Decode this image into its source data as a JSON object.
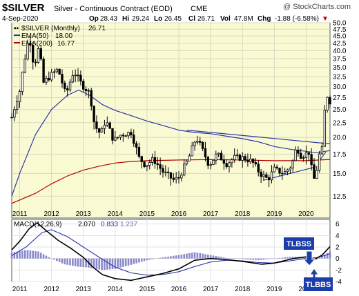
{
  "header": {
    "symbol": "$SILVER",
    "description": "Silver - Continuous Contract (EOD)",
    "exchange": "CME",
    "watermark": "@ StockCharts.com",
    "date": "4-Sep-2020",
    "op_label": "Op",
    "op": "28.43",
    "hi_label": "Hi",
    "hi": "29.24",
    "lo_label": "Lo",
    "lo": "26.45",
    "cl_label": "Cl",
    "cl": "26.71",
    "vol_label": "Vol",
    "vol": "47.8M",
    "chg_label": "Chg",
    "chg": "-1.88 (-6.58%)",
    "chg_arrow": "▼"
  },
  "colors": {
    "price_bg": "#fafad2",
    "candle": "#000000",
    "ema50": "#2b36a8",
    "ema200": "#b30000",
    "trendline": "#2b36a8",
    "macd_line": "#000000",
    "signal_line": "#2b36a8",
    "histogram": "#8888cc",
    "annotation_box": "#1c3ea8"
  },
  "annotations": {
    "tlbss": "TLBSS",
    "tlbbs": "TLBBS"
  },
  "chart_data": [
    {
      "type": "candlestick",
      "title": "$SILVER Silver - Continuous Contract (EOD)",
      "legend": [
        {
          "name": "$SILVER (Monthly)",
          "value": "26.71"
        },
        {
          "name": "EMA(50)",
          "value": "18.00"
        },
        {
          "name": "EMA(200)",
          "value": "16.77"
        }
      ],
      "y_axis": {
        "scale": "log",
        "ylim": [
          10.5,
          50
        ],
        "ticks": [
          12.5,
          15.0,
          17.5,
          20.0,
          22.5,
          25.0,
          27.5,
          30.0,
          32.5,
          35.0,
          37.5,
          40.0,
          42.5,
          45.0,
          47.5,
          50.0
        ],
        "tick_labels": [
          "12.5",
          "15.0",
          "17.5",
          "20.0",
          "22.5",
          "25.0",
          "27.5",
          "30.0",
          "32.5",
          "35.0",
          "37.5",
          "40.0",
          "42.5",
          "45.0",
          "47.5",
          "50.0"
        ]
      },
      "x_axis": {
        "range": [
          2010.75,
          2020.75
        ],
        "ticks": [
          2011,
          2012,
          2013,
          2014,
          2015,
          2016,
          2017,
          2018,
          2019,
          2020
        ],
        "tick_labels": [
          "2011",
          "2012",
          "2013",
          "2014",
          "2015",
          "2016",
          "2017",
          "2018",
          "2019",
          "2020"
        ]
      },
      "grid": true,
      "series": [
        {
          "name": "$SILVER (Monthly)",
          "type": "candlestick",
          "anchors": [
            [
              2010.75,
              23.5
            ],
            [
              2011.0,
              29.0
            ],
            [
              2011.3,
              45.0
            ],
            [
              2011.45,
              35.0
            ],
            [
              2011.6,
              41.0
            ],
            [
              2011.75,
              31.0
            ],
            [
              2012.0,
              33.0
            ],
            [
              2012.2,
              34.5
            ],
            [
              2012.45,
              28.0
            ],
            [
              2012.7,
              34.0
            ],
            [
              2012.95,
              30.5
            ],
            [
              2013.2,
              28.5
            ],
            [
              2013.35,
              22.0
            ],
            [
              2013.55,
              20.5
            ],
            [
              2013.7,
              23.0
            ],
            [
              2013.95,
              19.5
            ],
            [
              2014.2,
              20.5
            ],
            [
              2014.5,
              20.8
            ],
            [
              2014.75,
              17.0
            ],
            [
              2014.95,
              16.0
            ],
            [
              2015.2,
              16.8
            ],
            [
              2015.5,
              15.2
            ],
            [
              2015.85,
              14.2
            ],
            [
              2016.0,
              14.5
            ],
            [
              2016.3,
              16.8
            ],
            [
              2016.55,
              20.0
            ],
            [
              2016.75,
              18.0
            ],
            [
              2016.95,
              16.0
            ],
            [
              2017.2,
              17.5
            ],
            [
              2017.5,
              16.2
            ],
            [
              2017.75,
              17.0
            ],
            [
              2018.0,
              17.0
            ],
            [
              2018.3,
              16.5
            ],
            [
              2018.55,
              15.0
            ],
            [
              2018.8,
              14.3
            ],
            [
              2019.0,
              15.5
            ],
            [
              2019.3,
              15.0
            ],
            [
              2019.55,
              16.0
            ],
            [
              2019.7,
              18.5
            ],
            [
              2019.85,
              17.2
            ],
            [
              2020.1,
              17.8
            ],
            [
              2020.22,
              14.0
            ],
            [
              2020.32,
              15.2
            ],
            [
              2020.42,
              17.5
            ],
            [
              2020.5,
              18.2
            ],
            [
              2020.58,
              24.5
            ],
            [
              2020.66,
              28.0
            ],
            [
              2020.75,
              26.7
            ]
          ]
        },
        {
          "name": "EMA(50)",
          "points": [
            [
              2010.75,
              12.5
            ],
            [
              2011.0,
              15.0
            ],
            [
              2011.5,
              20.5
            ],
            [
              2012.0,
              25.0
            ],
            [
              2012.5,
              28.0
            ],
            [
              2012.85,
              29.2
            ],
            [
              2013.2,
              28.0
            ],
            [
              2013.6,
              26.0
            ],
            [
              2014.0,
              24.8
            ],
            [
              2014.5,
              23.8
            ],
            [
              2015.0,
              22.8
            ],
            [
              2015.5,
              22.0
            ],
            [
              2016.0,
              21.2
            ],
            [
              2016.5,
              20.8
            ],
            [
              2017.0,
              20.6
            ],
            [
              2017.5,
              20.2
            ],
            [
              2018.0,
              19.8
            ],
            [
              2018.5,
              19.3
            ],
            [
              2019.0,
              18.6
            ],
            [
              2019.5,
              18.2
            ],
            [
              2020.0,
              17.9
            ],
            [
              2020.3,
              17.7
            ],
            [
              2020.75,
              18.0
            ]
          ]
        },
        {
          "name": "EMA(200)",
          "points": [
            [
              2010.75,
              11.8
            ],
            [
              2011.5,
              12.8
            ],
            [
              2012.0,
              13.8
            ],
            [
              2012.5,
              14.7
            ],
            [
              2013.0,
              15.4
            ],
            [
              2013.5,
              15.9
            ],
            [
              2014.0,
              16.3
            ],
            [
              2014.5,
              16.5
            ],
            [
              2015.0,
              16.6
            ],
            [
              2016.0,
              16.7
            ],
            [
              2017.0,
              16.75
            ],
            [
              2018.0,
              16.7
            ],
            [
              2019.0,
              16.6
            ],
            [
              2020.0,
              16.6
            ],
            [
              2020.75,
              16.77
            ]
          ]
        },
        {
          "name": "Resistance trendline",
          "points": [
            [
              2016.25,
              21.2
            ],
            [
              2020.75,
              19.0
            ]
          ]
        },
        {
          "name": "Support trendline",
          "points": [
            [
              2018.65,
              14.2
            ],
            [
              2020.3,
              15.8
            ]
          ]
        },
        {
          "name": "Breakout line",
          "points": [
            [
              2020.45,
              16.8
            ],
            [
              2020.62,
              17.8
            ]
          ]
        }
      ]
    },
    {
      "type": "line",
      "title": "MACD(12,26,9) 2.070, 0.833, 1.237",
      "legend": [
        {
          "name": "MACD(12,26,9)",
          "value": "2.070"
        },
        {
          "name": "Signal",
          "value": "0.833"
        },
        {
          "name": "Histogram",
          "value": "1.237"
        }
      ],
      "ylim": [
        -4,
        6.8
      ],
      "y_ticks": [
        -4,
        -2,
        0,
        2,
        4,
        6
      ],
      "y_tick_labels": [
        "-4",
        "-2",
        "0",
        "2",
        "4",
        "6"
      ],
      "x_axis": {
        "range": [
          2010.75,
          2020.75
        ],
        "ticks": [
          2011,
          2012,
          2013,
          2014,
          2015,
          2016,
          2017,
          2018,
          2019,
          2020
        ],
        "tick_labels": [
          "2011",
          "2012",
          "2013",
          "2014",
          "2015",
          "2016",
          "2017",
          "2018",
          "2019",
          "2020"
        ]
      },
      "grid": true,
      "series": [
        {
          "name": "MACD(12,26,9)",
          "points": [
            [
              2010.75,
              1.5
            ],
            [
              2011.0,
              3.0
            ],
            [
              2011.3,
              5.2
            ],
            [
              2011.55,
              6.2
            ],
            [
              2011.8,
              5.0
            ],
            [
              2012.2,
              3.2
            ],
            [
              2012.6,
              1.8
            ],
            [
              2013.0,
              0.2
            ],
            [
              2013.3,
              -1.5
            ],
            [
              2013.6,
              -2.8
            ],
            [
              2014.0,
              -3.5
            ],
            [
              2014.5,
              -3.8
            ],
            [
              2015.0,
              -3.2
            ],
            [
              2015.5,
              -2.6
            ],
            [
              2016.0,
              -1.8
            ],
            [
              2016.5,
              -0.3
            ],
            [
              2017.0,
              0.0
            ],
            [
              2017.5,
              -0.2
            ],
            [
              2018.0,
              -0.5
            ],
            [
              2018.6,
              -1.0
            ],
            [
              2019.0,
              -0.8
            ],
            [
              2019.6,
              0.0
            ],
            [
              2020.0,
              0.3
            ],
            [
              2020.25,
              -0.2
            ],
            [
              2020.5,
              0.6
            ],
            [
              2020.75,
              2.07
            ]
          ]
        },
        {
          "name": "Signal",
          "points": [
            [
              2010.75,
              0.5
            ],
            [
              2011.2,
              2.0
            ],
            [
              2011.7,
              4.5
            ],
            [
              2012.0,
              5.0
            ],
            [
              2012.5,
              3.8
            ],
            [
              2013.0,
              2.0
            ],
            [
              2013.5,
              0.2
            ],
            [
              2014.0,
              -1.5
            ],
            [
              2014.5,
              -2.5
            ],
            [
              2015.0,
              -2.9
            ],
            [
              2015.5,
              -2.8
            ],
            [
              2016.0,
              -2.3
            ],
            [
              2016.5,
              -1.4
            ],
            [
              2017.0,
              -0.6
            ],
            [
              2017.5,
              -0.3
            ],
            [
              2018.0,
              -0.4
            ],
            [
              2018.5,
              -0.7
            ],
            [
              2019.0,
              -0.8
            ],
            [
              2019.5,
              -0.4
            ],
            [
              2020.0,
              0.0
            ],
            [
              2020.4,
              0.2
            ],
            [
              2020.75,
              0.833
            ]
          ]
        },
        {
          "name": "Histogram",
          "type": "bar",
          "points": [
            [
              2010.75,
              1.0
            ],
            [
              2011.2,
              1.5
            ],
            [
              2011.6,
              1.2
            ],
            [
              2012.0,
              0.0
            ],
            [
              2012.4,
              -1.0
            ],
            [
              2012.8,
              -1.4
            ],
            [
              2013.2,
              -1.6
            ],
            [
              2013.6,
              -2.0
            ],
            [
              2014.0,
              -1.8
            ],
            [
              2014.5,
              -1.1
            ],
            [
              2015.0,
              -0.3
            ],
            [
              2015.5,
              0.2
            ],
            [
              2016.0,
              0.6
            ],
            [
              2016.5,
              1.1
            ],
            [
              2017.0,
              0.6
            ],
            [
              2017.5,
              0.1
            ],
            [
              2018.0,
              -0.1
            ],
            [
              2018.5,
              -0.3
            ],
            [
              2019.0,
              0.0
            ],
            [
              2019.5,
              0.3
            ],
            [
              2020.0,
              0.3
            ],
            [
              2020.3,
              -0.3
            ],
            [
              2020.5,
              0.4
            ],
            [
              2020.75,
              1.237
            ]
          ]
        }
      ]
    }
  ]
}
